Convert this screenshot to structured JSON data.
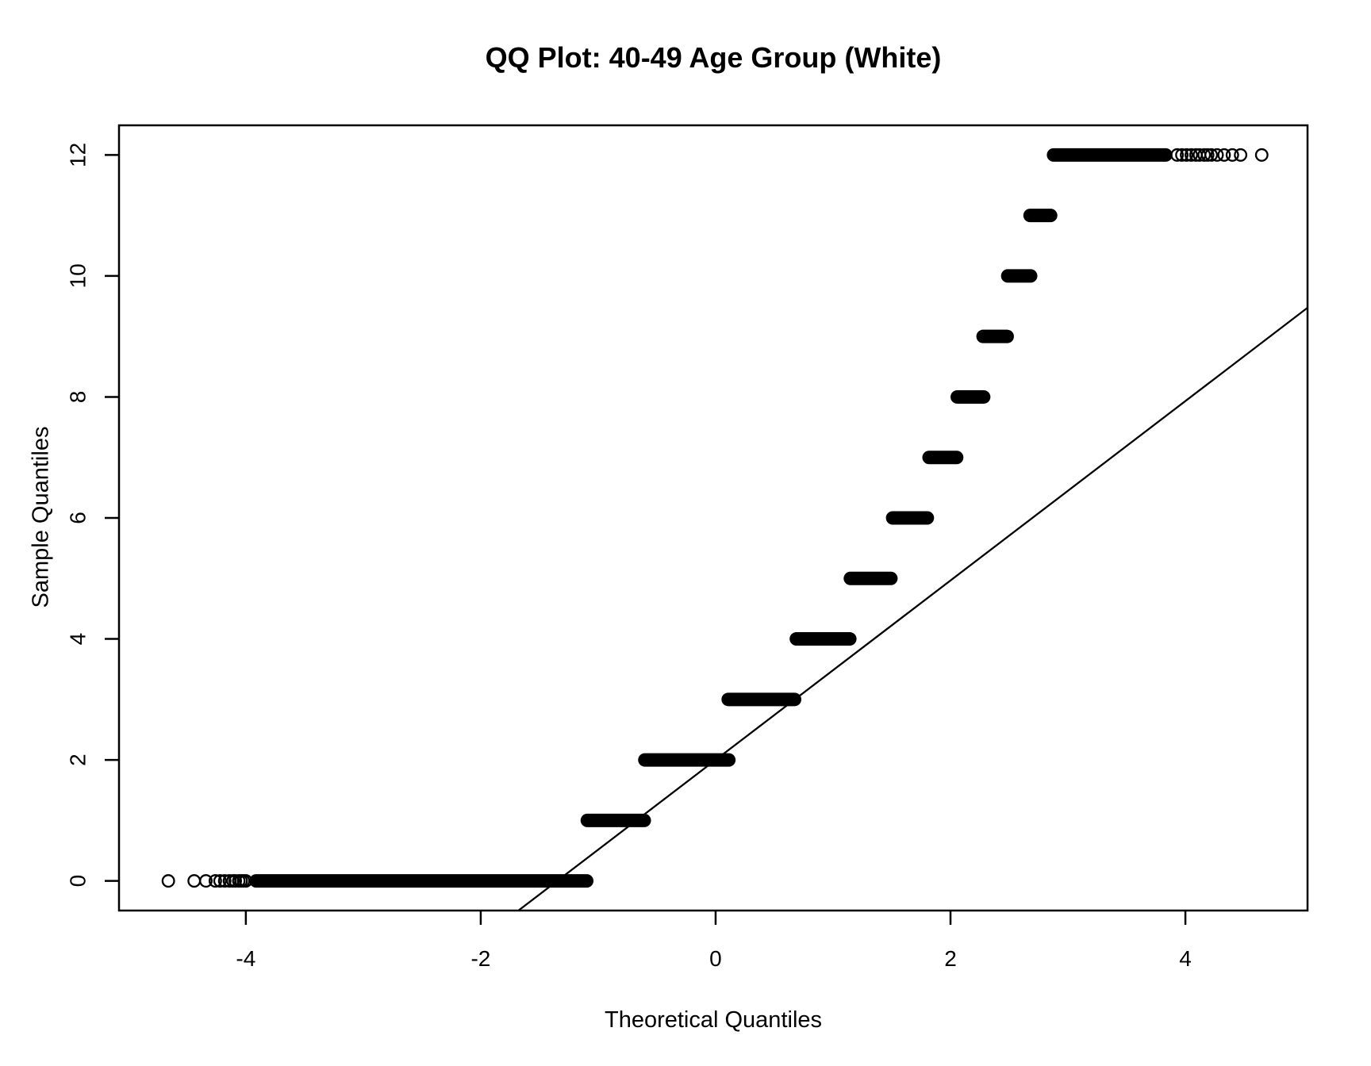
{
  "figure": {
    "background_color": "#FFFFFF",
    "foreground_color": "#000000"
  },
  "chart_data": {
    "type": "scatter",
    "subtype": "qq-plot",
    "title": "QQ Plot: 40-49 Age Group (White)",
    "xlabel": "Theoretical Quantiles",
    "ylabel": "Sample Quantiles",
    "x_ticks": [
      -4,
      -2,
      0,
      2,
      4
    ],
    "y_ticks": [
      0,
      2,
      4,
      6,
      8,
      10,
      12
    ],
    "xlim": [
      -5.08,
      5.04
    ],
    "ylim": [
      -0.49,
      12.49
    ],
    "grid": false,
    "legend": false,
    "marker": "open-circle",
    "point_color": "#000000",
    "sample_quantile_levels": [
      0,
      1,
      2,
      3,
      4,
      5,
      6,
      7,
      8,
      9,
      10,
      11,
      12
    ],
    "bands": [
      {
        "y": 0,
        "from": -3.97,
        "to": -1.04
      },
      {
        "y": 1,
        "from": -1.15,
        "to": -0.55
      },
      {
        "y": 2,
        "from": -0.66,
        "to": 0.17
      },
      {
        "y": 3,
        "from": 0.05,
        "to": 0.73
      },
      {
        "y": 4,
        "from": 0.63,
        "to": 1.2
      },
      {
        "y": 5,
        "from": 1.09,
        "to": 1.55
      },
      {
        "y": 6,
        "from": 1.45,
        "to": 1.86
      },
      {
        "y": 7,
        "from": 1.76,
        "to": 2.11
      },
      {
        "y": 8,
        "from": 2.0,
        "to": 2.34
      },
      {
        "y": 9,
        "from": 2.22,
        "to": 2.54
      },
      {
        "y": 10,
        "from": 2.43,
        "to": 2.74
      },
      {
        "y": 11,
        "from": 2.62,
        "to": 2.91
      },
      {
        "y": 12,
        "from": 2.82,
        "to": 3.89
      }
    ],
    "tail_points": [
      {
        "y": 0,
        "x": [
          -4.66,
          -4.44,
          -4.34,
          -4.26,
          -4.22,
          -4.18,
          -4.14,
          -4.11,
          -4.09,
          -4.06,
          -4.04,
          -4.02,
          -4.0
        ]
      },
      {
        "y": 12,
        "x": [
          3.93,
          3.97,
          4.01,
          4.05,
          4.09,
          4.12,
          4.16,
          4.19,
          4.22,
          4.27,
          4.33,
          4.4,
          4.47,
          4.65
        ]
      }
    ],
    "reference_line": {
      "slope": 1.483,
      "intercept": 2.0
    }
  }
}
